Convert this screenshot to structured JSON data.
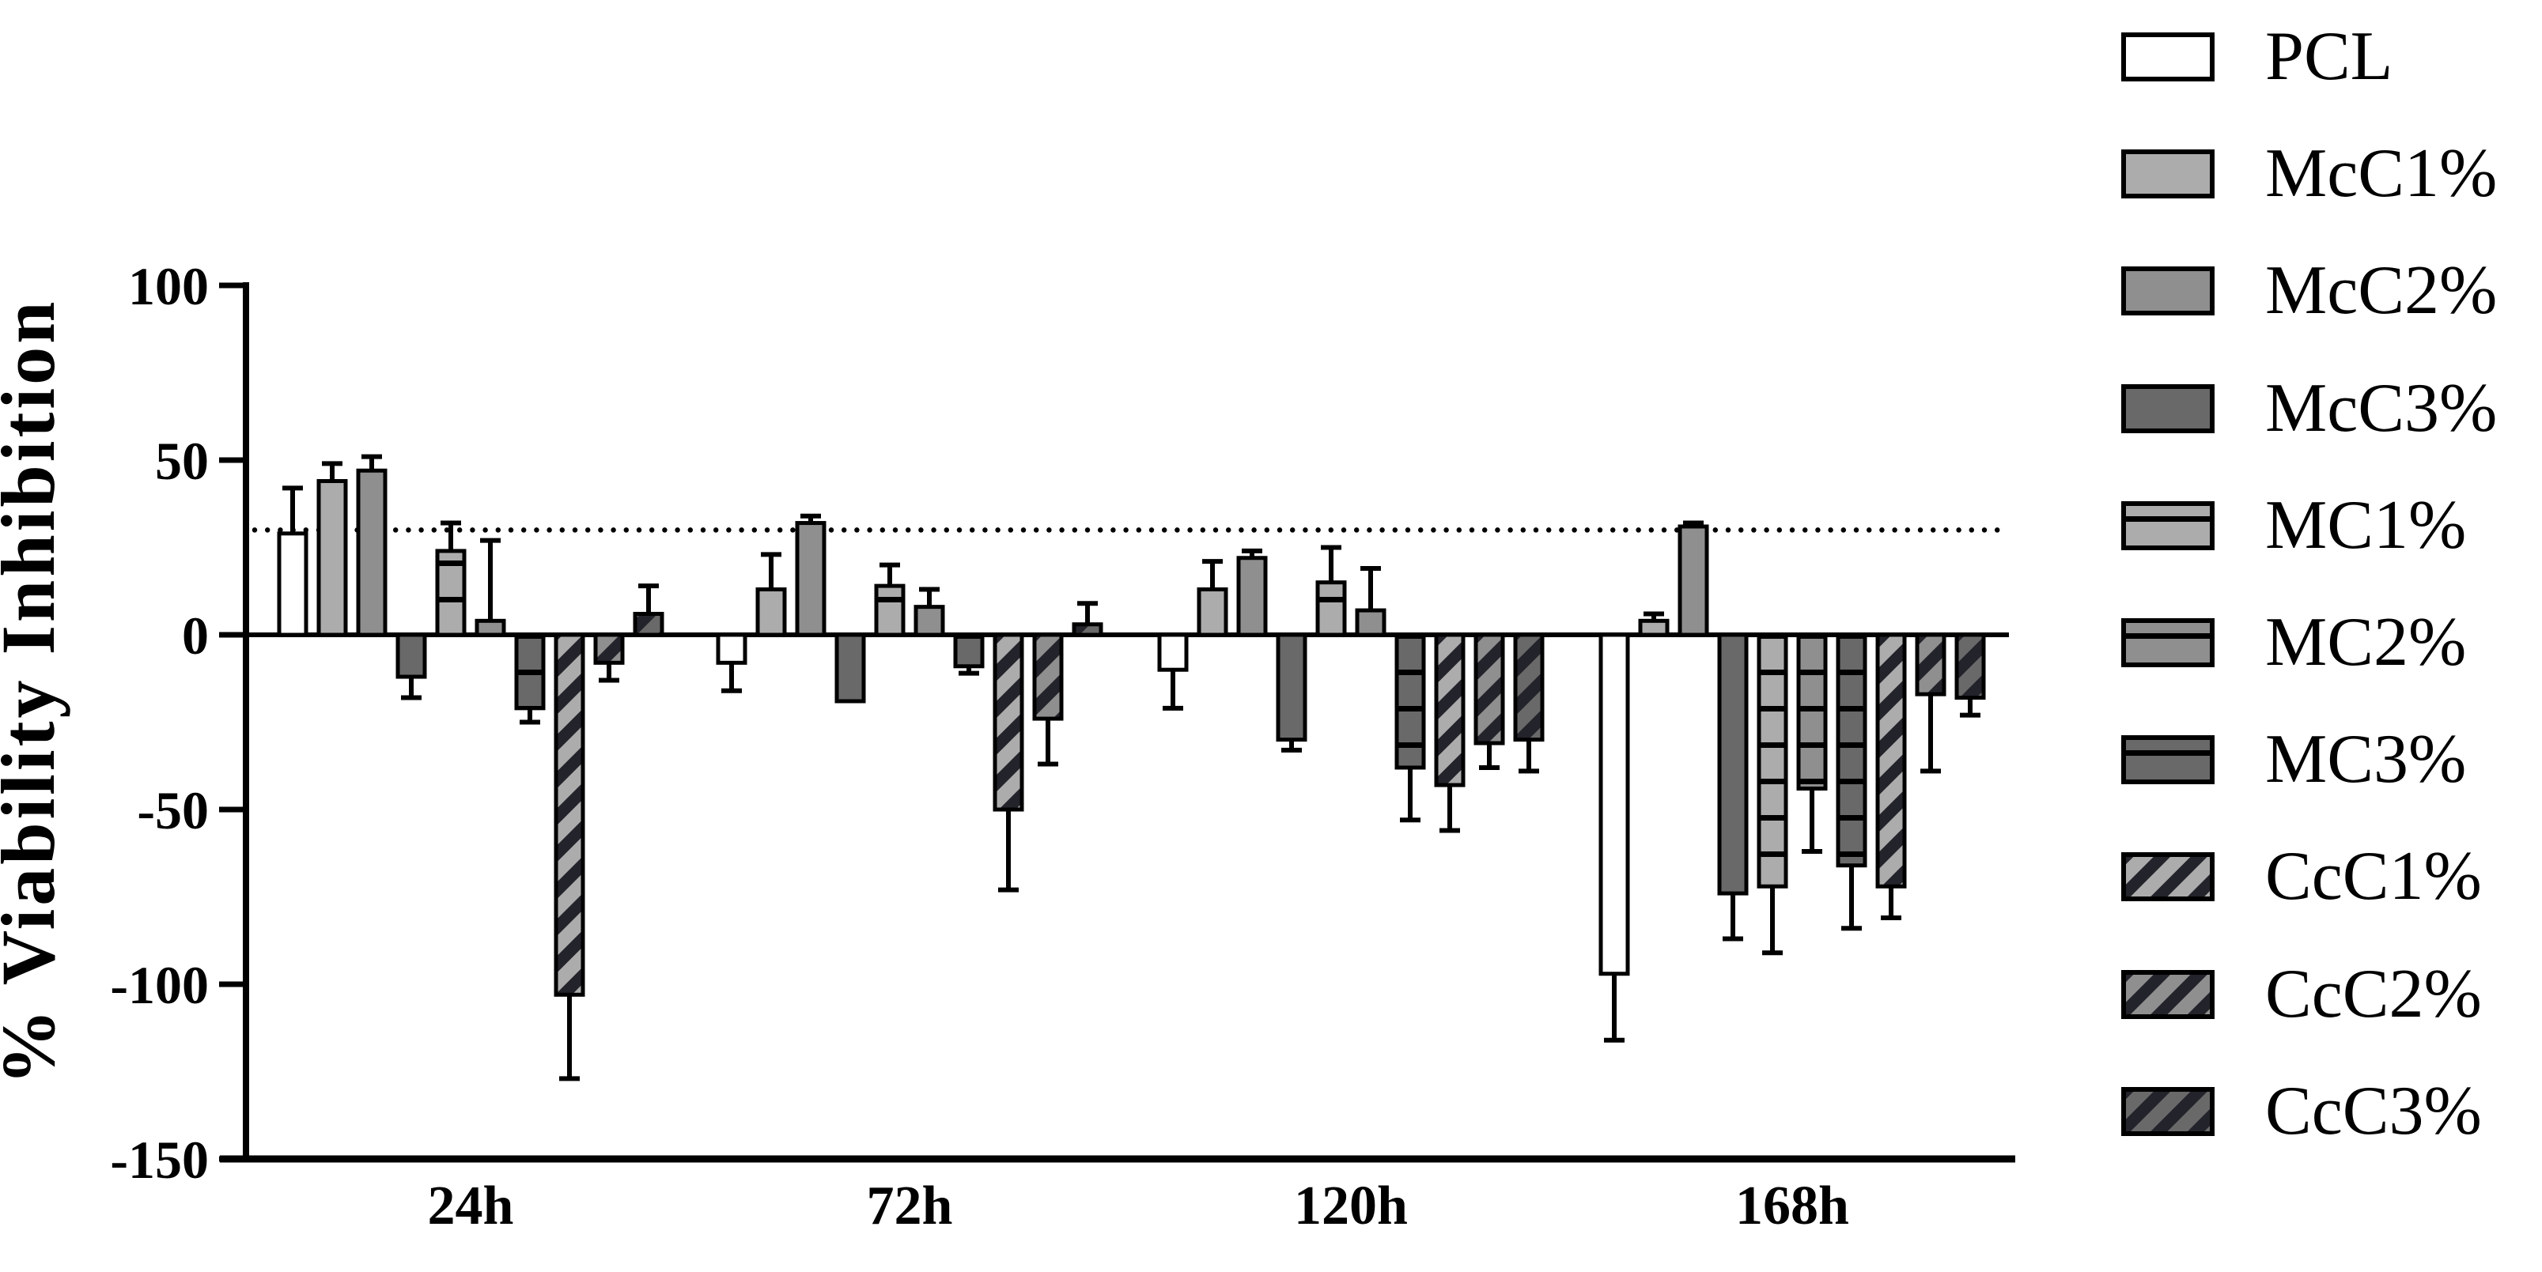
{
  "figure": {
    "background": "#ffffff"
  },
  "y_axis": {
    "title": "% Viability Inhibition",
    "tick_labels": [
      "100",
      "50",
      "0",
      "-50",
      "-100",
      "-150"
    ],
    "tick_values": [
      100,
      50,
      0,
      -50,
      -100,
      -150
    ]
  },
  "x_axis": {
    "categories": [
      "24h",
      "72h",
      "120h",
      "168h"
    ]
  },
  "colors": {
    "light_gray": "#acacac",
    "mid_gray": "#8f8f8f",
    "dark_gray": "#696969",
    "stripe_dark": "#23232b",
    "line_black": "#000000",
    "bar_white": "#ffffff"
  },
  "chart_data": {
    "type": "bar",
    "title": "",
    "xlabel": "",
    "ylabel": "% Viability Inhibition",
    "ylim": [
      -150,
      100
    ],
    "yticks": [
      100,
      50,
      0,
      -50,
      -100,
      -150
    ],
    "grid": false,
    "legend_position": "right",
    "reference_line": {
      "value": 30,
      "style": "dotted"
    },
    "categories": [
      "24h",
      "72h",
      "120h",
      "168h"
    ],
    "series": [
      {
        "name": "PCL",
        "pattern": "solid",
        "fill": "bar_white",
        "values": [
          29,
          -8,
          -10,
          -97
        ],
        "errors": [
          13,
          8,
          11,
          19
        ]
      },
      {
        "name": "McC1%",
        "pattern": "solid",
        "fill": "light_gray",
        "values": [
          44,
          13,
          13,
          4
        ],
        "errors": [
          5,
          10,
          8,
          2
        ]
      },
      {
        "name": "McC2%",
        "pattern": "solid",
        "fill": "mid_gray",
        "values": [
          47,
          32,
          22,
          31
        ],
        "errors": [
          4,
          2,
          2,
          1
        ]
      },
      {
        "name": "McC3%",
        "pattern": "solid",
        "fill": "dark_gray",
        "values": [
          -12,
          -19,
          -30,
          -74
        ],
        "errors": [
          6,
          0,
          3,
          13
        ]
      },
      {
        "name": "MC1%",
        "pattern": "hlines",
        "fill": "light_gray",
        "values": [
          24,
          14,
          15,
          -72
        ],
        "errors": [
          8,
          6,
          10,
          19
        ]
      },
      {
        "name": "MC2%",
        "pattern": "hlines",
        "fill": "mid_gray",
        "values": [
          4,
          8,
          7,
          -44
        ],
        "errors": [
          23,
          5,
          12,
          18
        ]
      },
      {
        "name": "MC3%",
        "pattern": "hlines",
        "fill": "dark_gray",
        "values": [
          -21,
          -9,
          -38,
          -66
        ],
        "errors": [
          4,
          2,
          15,
          18
        ]
      },
      {
        "name": "CcC1%",
        "pattern": "diag",
        "fill": "light_gray",
        "values": [
          -103,
          -50,
          -43,
          -72
        ],
        "errors": [
          24,
          23,
          13,
          9
        ]
      },
      {
        "name": "CcC2%",
        "pattern": "diag",
        "fill": "mid_gray",
        "values": [
          -8,
          -24,
          -31,
          -17
        ],
        "errors": [
          5,
          13,
          7,
          22
        ]
      },
      {
        "name": "CcC3%",
        "pattern": "diag",
        "fill": "dark_gray",
        "values": [
          6,
          3,
          -30,
          -18
        ],
        "errors": [
          8,
          6,
          9,
          5
        ]
      }
    ]
  }
}
